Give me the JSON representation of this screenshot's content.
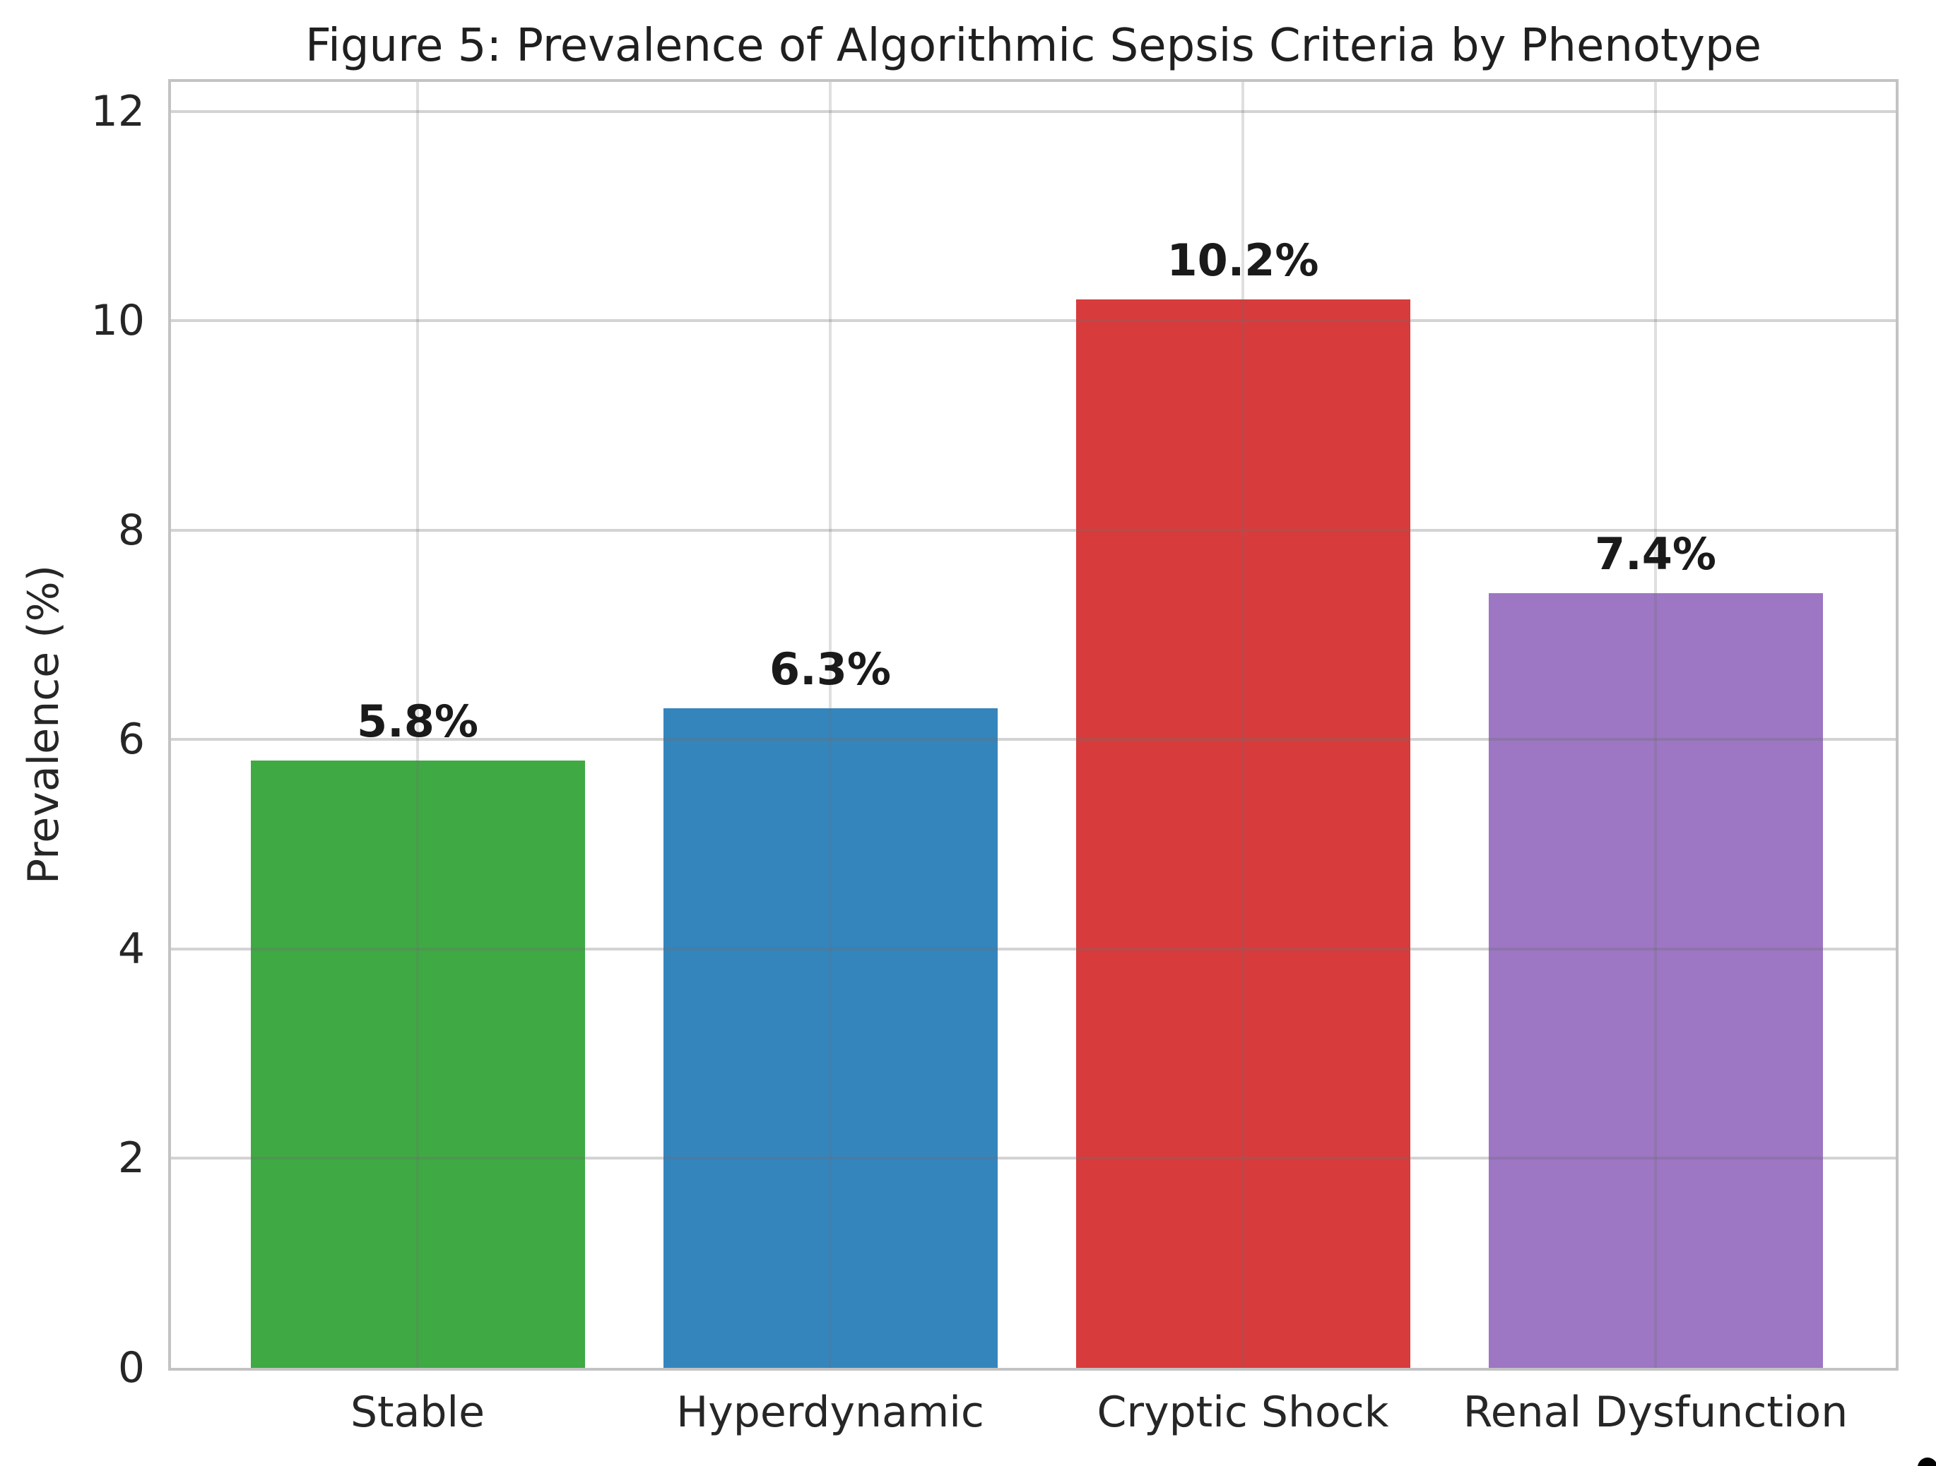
{
  "chart_data": {
    "type": "bar",
    "title": "Figure 5: Prevalence of Algorithmic Sepsis Criteria by Phenotype",
    "xlabel": "",
    "ylabel": "Prevalence (%)",
    "categories": [
      "Stable",
      "Hyperdynamic",
      "Cryptic Shock",
      "Renal Dysfunction"
    ],
    "values": [
      5.8,
      6.3,
      10.2,
      7.4
    ],
    "bar_labels": [
      "5.8%",
      "6.3%",
      "10.2%",
      "7.4%"
    ],
    "bar_colors": [
      "#3fa944",
      "#3585bd",
      "#d83b3c",
      "#9d76c4"
    ],
    "yticks": [
      0,
      2,
      4,
      6,
      8,
      10,
      12
    ],
    "ylim": [
      0,
      12.28
    ],
    "grid": true,
    "legend_position": "none",
    "styles": {
      "background": "#ffffff",
      "grid_color_on_white": "#d0d0d0",
      "spine_color": "#c3c3c3",
      "tick_text_color": "#262626",
      "value_label_color": "#1a1a1a",
      "title_color": "#1f1f1f"
    }
  }
}
